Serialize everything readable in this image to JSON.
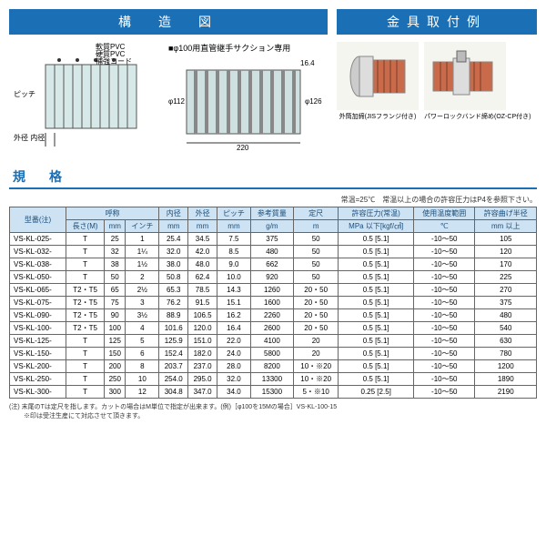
{
  "titles": {
    "structure": "構　造　図",
    "fitting": "金具取付例",
    "spec": "規　格"
  },
  "diagram": {
    "note": "■φ100用直管継手サクション専用",
    "labels": {
      "soft_pvc": "軟質PVC",
      "hard_pvc": "硬質PVC",
      "cord": "補強コード",
      "pitch": "ピッチ",
      "od_id": "外径 内径",
      "d112": "φ112",
      "d126": "φ126",
      "w220": "220",
      "t164": "16.4"
    }
  },
  "fittings": {
    "a": "外筒加締(JISフランジ付き)",
    "b": "パワーロックバンド締め(OZ-CP付き)"
  },
  "spec_note": "常温=25℃　常温以上の場合の許容圧力はP4を参照下さい。",
  "columns": {
    "model": "型番(注)",
    "nominal": "呼称",
    "length": "長さ(M)",
    "mm": "mm",
    "inch": "インチ",
    "id": "内径",
    "od": "外径",
    "pitch": "ピッチ",
    "mass": "参考質量",
    "roll": "定尺",
    "pressure": "許容圧力(常温)",
    "pressure_unit": "MPa 以下[kgf/㎠]",
    "temp": "使用温度範囲",
    "radius": "許容曲げ半径",
    "unit_mm": "mm",
    "unit_gm": "g/m",
    "unit_m": "m",
    "unit_c": "℃",
    "unit_mm_min": "mm 以上"
  },
  "rows": [
    {
      "model": "VS-KL-025-",
      "len": "T",
      "mm": "25",
      "inch": "1",
      "id": "25.4",
      "od": "34.5",
      "pitch": "7.5",
      "mass": "375",
      "roll": "50",
      "press": "0.5 [5.1]",
      "temp": "-10～50",
      "rad": "105"
    },
    {
      "model": "VS-KL-032-",
      "len": "T",
      "mm": "32",
      "inch": "1¼",
      "id": "32.0",
      "od": "42.0",
      "pitch": "8.5",
      "mass": "480",
      "roll": "50",
      "press": "0.5 [5.1]",
      "temp": "-10～50",
      "rad": "120"
    },
    {
      "model": "VS-KL-038-",
      "len": "T",
      "mm": "38",
      "inch": "1½",
      "id": "38.0",
      "od": "48.0",
      "pitch": "9.0",
      "mass": "662",
      "roll": "50",
      "press": "0.5 [5.1]",
      "temp": "-10～50",
      "rad": "170"
    },
    {
      "model": "VS-KL-050-",
      "len": "T",
      "mm": "50",
      "inch": "2",
      "id": "50.8",
      "od": "62.4",
      "pitch": "10.0",
      "mass": "920",
      "roll": "50",
      "press": "0.5 [5.1]",
      "temp": "-10～50",
      "rad": "225"
    },
    {
      "model": "VS-KL-065-",
      "len": "T2・T5",
      "mm": "65",
      "inch": "2½",
      "id": "65.3",
      "od": "78.5",
      "pitch": "14.3",
      "mass": "1260",
      "roll": "20・50",
      "press": "0.5 [5.1]",
      "temp": "-10～50",
      "rad": "270"
    },
    {
      "model": "VS-KL-075-",
      "len": "T2・T5",
      "mm": "75",
      "inch": "3",
      "id": "76.2",
      "od": "91.5",
      "pitch": "15.1",
      "mass": "1600",
      "roll": "20・50",
      "press": "0.5 [5.1]",
      "temp": "-10～50",
      "rad": "375"
    },
    {
      "model": "VS-KL-090-",
      "len": "T2・T5",
      "mm": "90",
      "inch": "3½",
      "id": "88.9",
      "od": "106.5",
      "pitch": "16.2",
      "mass": "2260",
      "roll": "20・50",
      "press": "0.5 [5.1]",
      "temp": "-10～50",
      "rad": "480"
    },
    {
      "model": "VS-KL-100-",
      "len": "T2・T5",
      "mm": "100",
      "inch": "4",
      "id": "101.6",
      "od": "120.0",
      "pitch": "16.4",
      "mass": "2600",
      "roll": "20・50",
      "press": "0.5 [5.1]",
      "temp": "-10～50",
      "rad": "540"
    },
    {
      "model": "VS-KL-125-",
      "len": "T",
      "mm": "125",
      "inch": "5",
      "id": "125.9",
      "od": "151.0",
      "pitch": "22.0",
      "mass": "4100",
      "roll": "20",
      "press": "0.5 [5.1]",
      "temp": "-10～50",
      "rad": "630"
    },
    {
      "model": "VS-KL-150-",
      "len": "T",
      "mm": "150",
      "inch": "6",
      "id": "152.4",
      "od": "182.0",
      "pitch": "24.0",
      "mass": "5800",
      "roll": "20",
      "press": "0.5 [5.1]",
      "temp": "-10～50",
      "rad": "780"
    },
    {
      "model": "VS-KL-200-",
      "len": "T",
      "mm": "200",
      "inch": "8",
      "id": "203.7",
      "od": "237.0",
      "pitch": "28.0",
      "mass": "8200",
      "roll": "10・※20",
      "press": "0.5 [5.1]",
      "temp": "-10～50",
      "rad": "1200"
    },
    {
      "model": "VS-KL-250-",
      "len": "T",
      "mm": "250",
      "inch": "10",
      "id": "254.0",
      "od": "295.0",
      "pitch": "32.0",
      "mass": "13300",
      "roll": "10・※20",
      "press": "0.5 [5.1]",
      "temp": "-10～50",
      "rad": "1890"
    },
    {
      "model": "VS-KL-300-",
      "len": "T",
      "mm": "300",
      "inch": "12",
      "id": "304.8",
      "od": "347.0",
      "pitch": "34.0",
      "mass": "15300",
      "roll": "5・※10",
      "press": "0.25 [2.5]",
      "temp": "-10～50",
      "rad": "2190"
    }
  ],
  "footnote": "(注) 末尾のTは定尺を指します。カットの場合はM単位で指定が出来ます。(例)［φ100を15Mの場合］VS-KL-100-15\n　　 ※印は受注生産にて対応させて頂きます。"
}
